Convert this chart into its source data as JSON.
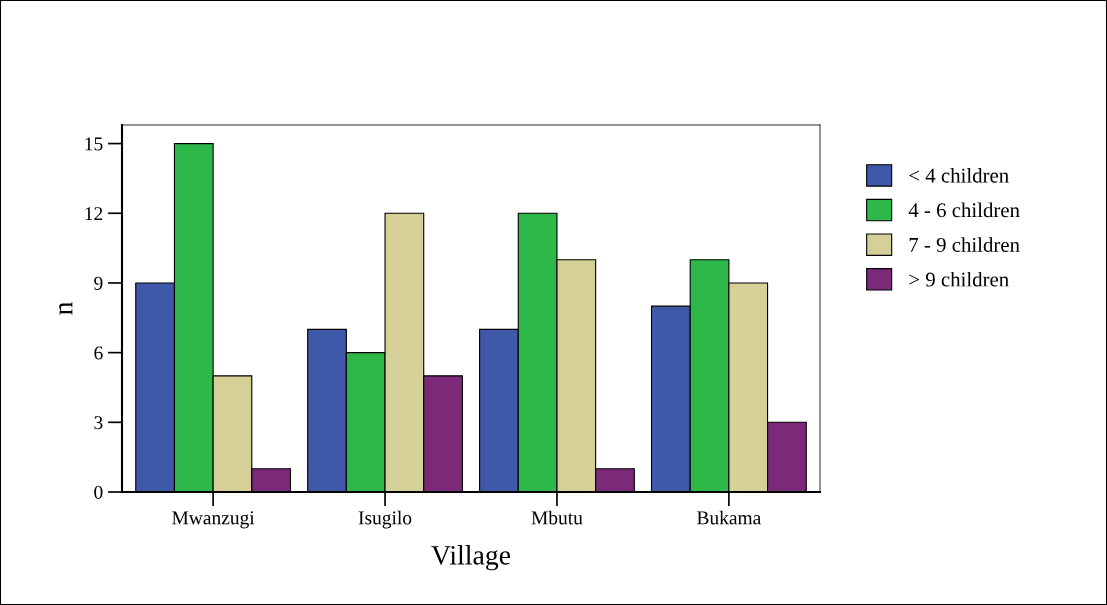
{
  "chart_data": {
    "type": "bar",
    "xlabel": "Village",
    "ylabel": "n",
    "categories": [
      "Mwanzugi",
      "Isugilo",
      "Mbutu",
      "Bukama"
    ],
    "series": [
      {
        "name": "< 4 children",
        "color": "#3f58a8",
        "values": [
          9,
          7,
          7,
          8
        ]
      },
      {
        "name": "4 - 6 children",
        "color": "#2fb84a",
        "values": [
          15,
          6,
          12,
          10
        ]
      },
      {
        "name": "7 - 9 children",
        "color": "#d5cf98",
        "values": [
          5,
          12,
          10,
          9
        ]
      },
      {
        "name": "> 9 children",
        "color": "#7b2a7a",
        "values": [
          1,
          5,
          1,
          3
        ]
      }
    ],
    "ylim": [
      0,
      15.8
    ],
    "yticks": [
      0,
      3,
      6,
      9,
      12,
      15
    ],
    "grid": false,
    "legend": "right"
  }
}
